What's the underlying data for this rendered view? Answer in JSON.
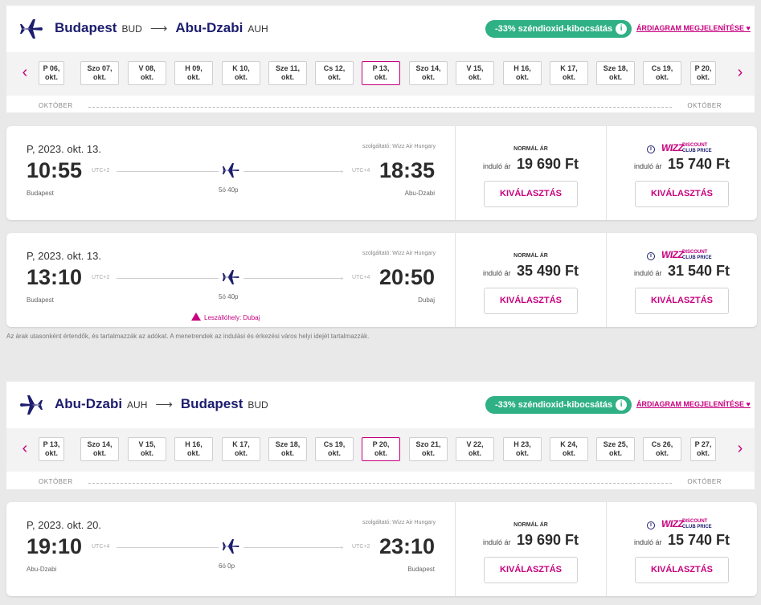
{
  "outbound": {
    "from_city": "Budapest",
    "from_code": "BUD",
    "arrow": "⟶",
    "to_city": "Abu-Dzabi",
    "to_code": "AUH",
    "co2_badge": "-33% széndioxid-kibocsátás",
    "price_chart_link": "ÁRDIAGRAM MEGJELENÍTÉSE",
    "dates": [
      {
        "day": "P 06,",
        "month": "okt."
      },
      {
        "day": "Szo 07,",
        "month": "okt."
      },
      {
        "day": "V 08,",
        "month": "okt."
      },
      {
        "day": "H 09,",
        "month": "okt."
      },
      {
        "day": "K 10,",
        "month": "okt."
      },
      {
        "day": "Sze 11,",
        "month": "okt."
      },
      {
        "day": "Cs 12,",
        "month": "okt."
      },
      {
        "day": "P 13,",
        "month": "okt."
      },
      {
        "day": "Szo 14,",
        "month": "okt."
      },
      {
        "day": "V 15,",
        "month": "okt."
      },
      {
        "day": "H 16,",
        "month": "okt."
      },
      {
        "day": "K 17,",
        "month": "okt."
      },
      {
        "day": "Sze 18,",
        "month": "okt."
      },
      {
        "day": "Cs 19,",
        "month": "okt."
      },
      {
        "day": "P 20,",
        "month": "okt."
      }
    ],
    "selected_index": 7,
    "month_left": "OKTÓBER",
    "month_right": "OKTÓBER",
    "flights": [
      {
        "date": "P, 2023. okt. 13.",
        "operator": "szolgáltató: Wizz Air Hungary",
        "dep_time": "10:55",
        "dep_tz": "UTC+2",
        "arr_tz": "UTC+4",
        "arr_time": "18:35",
        "duration": "5ó 40p",
        "dep_city": "Budapest",
        "arr_city": "Abu-Dzabi",
        "layover": "",
        "normal_label": "NORMÁL ÁR",
        "from_label": "induló ár",
        "normal_price": "19 690 Ft",
        "club_price": "15 740 Ft",
        "select_label": "KIVÁLASZTÁS"
      },
      {
        "date": "P, 2023. okt. 13.",
        "operator": "szolgáltató: Wizz Air Hungary",
        "dep_time": "13:10",
        "dep_tz": "UTC+2",
        "arr_tz": "UTC+4",
        "arr_time": "20:50",
        "duration": "5ó 40p",
        "dep_city": "Budapest",
        "arr_city": "Dubaj",
        "layover": "Leszállóhely: Dubaj",
        "normal_label": "NORMÁL ÁR",
        "from_label": "induló ár",
        "normal_price": "35 490 Ft",
        "club_price": "31 540 Ft",
        "select_label": "KIVÁLASZTÁS"
      }
    ]
  },
  "disclaimer": "Az árak utasonként értendők, és tartalmazzák az adókat. A menetrendek az indulási és érkezési város helyi idejét tartalmazzák.",
  "inbound": {
    "from_city": "Abu-Dzabi",
    "from_code": "AUH",
    "arrow": "⟶",
    "to_city": "Budapest",
    "to_code": "BUD",
    "co2_badge": "-33% széndioxid-kibocsátás",
    "price_chart_link": "ÁRDIAGRAM MEGJELENÍTÉSE",
    "dates": [
      {
        "day": "P 13,",
        "month": "okt."
      },
      {
        "day": "Szo 14,",
        "month": "okt."
      },
      {
        "day": "V 15,",
        "month": "okt."
      },
      {
        "day": "H 16,",
        "month": "okt."
      },
      {
        "day": "K 17,",
        "month": "okt."
      },
      {
        "day": "Sze 18,",
        "month": "okt."
      },
      {
        "day": "Cs 19,",
        "month": "okt."
      },
      {
        "day": "P 20,",
        "month": "okt."
      },
      {
        "day": "Szo 21,",
        "month": "okt."
      },
      {
        "day": "V 22,",
        "month": "okt."
      },
      {
        "day": "H 23,",
        "month": "okt."
      },
      {
        "day": "K 24,",
        "month": "okt."
      },
      {
        "day": "Sze 25,",
        "month": "okt."
      },
      {
        "day": "Cs 26,",
        "month": "okt."
      },
      {
        "day": "P 27,",
        "month": "okt."
      }
    ],
    "selected_index": 7,
    "month_left": "OKTÓBER",
    "month_right": "OKTÓBER",
    "flights": [
      {
        "date": "P, 2023. okt. 20.",
        "operator": "szolgáltató: Wizz Air Hungary",
        "dep_time": "19:10",
        "dep_tz": "UTC+4",
        "arr_tz": "UTC+2",
        "arr_time": "23:10",
        "duration": "6ó 0p",
        "dep_city": "Abu-Dzabi",
        "arr_city": "Budapest",
        "layover": "",
        "normal_label": "NORMÁL ÁR",
        "from_label": "induló ár",
        "normal_price": "19 690 Ft",
        "club_price": "15 740 Ft",
        "select_label": "KIVÁLASZTÁS"
      }
    ]
  },
  "club": {
    "logo": "WIZZ",
    "line1": "DISCOUNT",
    "line2": "CLUB",
    "line3": "PRICE"
  },
  "colors": {
    "brand_navy": "#1c1d6e",
    "brand_pink": "#c6007e",
    "co2_green": "#2fb085"
  }
}
